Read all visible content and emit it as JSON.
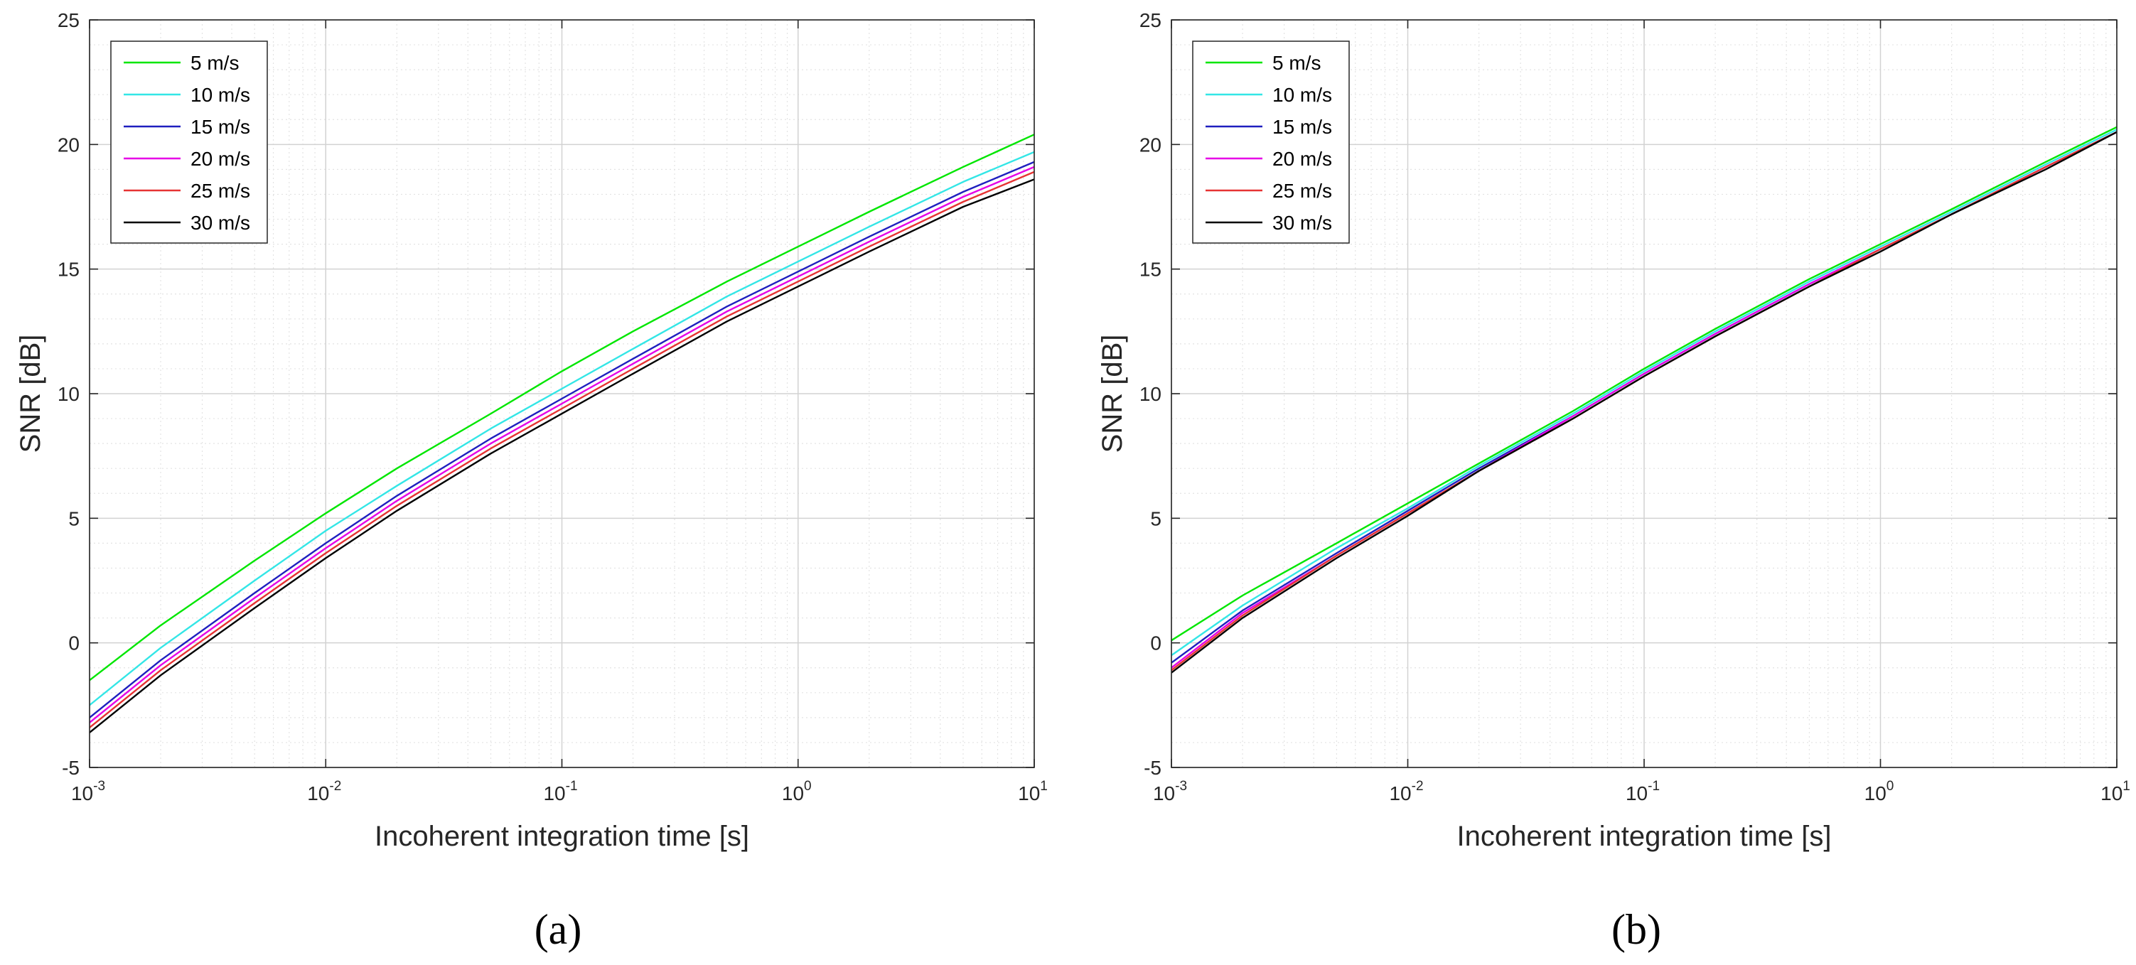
{
  "figure": {
    "panel_labels": [
      "(a)",
      "(b)"
    ]
  },
  "chart_data": [
    {
      "type": "line",
      "panel": "(a)",
      "xscale": "log",
      "xlabel": "Incoherent integration time [s]",
      "ylabel": "SNR [dB]",
      "xlim": [
        0.001,
        10
      ],
      "ylim": [
        -5,
        25
      ],
      "x_tick_labels": [
        {
          "base": "10",
          "exp": "-3"
        },
        {
          "base": "10",
          "exp": "-2"
        },
        {
          "base": "10",
          "exp": "-1"
        },
        {
          "base": "10",
          "exp": "0"
        },
        {
          "base": "10",
          "exp": "1"
        }
      ],
      "y_ticks": [
        "-5",
        "0",
        "5",
        "10",
        "15",
        "20",
        "25"
      ],
      "grid": true,
      "minor_grid": true,
      "legend_position": "top-left",
      "x": [
        0.001,
        0.002,
        0.005,
        0.01,
        0.02,
        0.05,
        0.1,
        0.2,
        0.5,
        1,
        2,
        5,
        10
      ],
      "series": [
        {
          "name": "5 m/s",
          "color": "#00e600",
          "values": [
            -1.5,
            0.7,
            3.3,
            5.2,
            7.0,
            9.2,
            10.9,
            12.5,
            14.5,
            15.9,
            17.3,
            19.1,
            20.4
          ]
        },
        {
          "name": "10 m/s",
          "color": "#33e6e6",
          "values": [
            -2.5,
            -0.2,
            2.5,
            4.5,
            6.3,
            8.6,
            10.2,
            11.8,
            13.9,
            15.3,
            16.7,
            18.5,
            19.7
          ]
        },
        {
          "name": "15 m/s",
          "color": "#1f1fbf",
          "values": [
            -3.0,
            -0.7,
            2.0,
            4.0,
            5.9,
            8.2,
            9.8,
            11.4,
            13.5,
            14.9,
            16.3,
            18.1,
            19.3
          ]
        },
        {
          "name": "20 m/s",
          "color": "#e600e6",
          "values": [
            -3.2,
            -0.9,
            1.8,
            3.8,
            5.7,
            8.0,
            9.6,
            11.2,
            13.3,
            14.7,
            16.1,
            17.9,
            19.1
          ]
        },
        {
          "name": "25 m/s",
          "color": "#e63333",
          "values": [
            -3.4,
            -1.1,
            1.6,
            3.6,
            5.5,
            7.8,
            9.4,
            11.0,
            13.1,
            14.5,
            15.9,
            17.7,
            18.9
          ]
        },
        {
          "name": "30 m/s",
          "color": "#000000",
          "values": [
            -3.6,
            -1.3,
            1.4,
            3.4,
            5.3,
            7.6,
            9.2,
            10.8,
            12.9,
            14.3,
            15.7,
            17.5,
            18.6
          ]
        }
      ]
    },
    {
      "type": "line",
      "panel": "(b)",
      "xscale": "log",
      "xlabel": "Incoherent integration time [s]",
      "ylabel": "SNR [dB]",
      "xlim": [
        0.001,
        10
      ],
      "ylim": [
        -5,
        25
      ],
      "x_tick_labels": [
        {
          "base": "10",
          "exp": "-3"
        },
        {
          "base": "10",
          "exp": "-2"
        },
        {
          "base": "10",
          "exp": "-1"
        },
        {
          "base": "10",
          "exp": "0"
        },
        {
          "base": "10",
          "exp": "1"
        }
      ],
      "y_ticks": [
        "-5",
        "0",
        "5",
        "10",
        "15",
        "20",
        "25"
      ],
      "grid": true,
      "minor_grid": true,
      "legend_position": "top-left",
      "x": [
        0.001,
        0.002,
        0.005,
        0.01,
        0.02,
        0.05,
        0.1,
        0.2,
        0.5,
        1,
        2,
        5,
        10
      ],
      "series": [
        {
          "name": "5 m/s",
          "color": "#00e600",
          "values": [
            0.1,
            1.9,
            4.0,
            5.6,
            7.2,
            9.3,
            11.0,
            12.6,
            14.6,
            16.0,
            17.4,
            19.3,
            20.7
          ]
        },
        {
          "name": "10 m/s",
          "color": "#33e6e6",
          "values": [
            -0.5,
            1.5,
            3.8,
            5.4,
            7.1,
            9.2,
            10.9,
            12.5,
            14.5,
            15.9,
            17.3,
            19.2,
            20.6
          ]
        },
        {
          "name": "15 m/s",
          "color": "#1f1fbf",
          "values": [
            -0.8,
            1.3,
            3.6,
            5.3,
            7.0,
            9.1,
            10.8,
            12.4,
            14.4,
            15.8,
            17.2,
            19.1,
            20.5
          ]
        },
        {
          "name": "20 m/s",
          "color": "#e600e6",
          "values": [
            -1.0,
            1.2,
            3.5,
            5.2,
            6.9,
            9.1,
            10.8,
            12.4,
            14.4,
            15.8,
            17.2,
            19.1,
            20.5
          ]
        },
        {
          "name": "25 m/s",
          "color": "#e63333",
          "values": [
            -1.1,
            1.1,
            3.5,
            5.2,
            6.9,
            9.0,
            10.7,
            12.3,
            14.3,
            15.8,
            17.2,
            19.1,
            20.5
          ]
        },
        {
          "name": "30 m/s",
          "color": "#000000",
          "values": [
            -1.2,
            1.0,
            3.4,
            5.1,
            6.9,
            9.0,
            10.7,
            12.3,
            14.3,
            15.7,
            17.2,
            19.0,
            20.5
          ]
        }
      ]
    }
  ]
}
